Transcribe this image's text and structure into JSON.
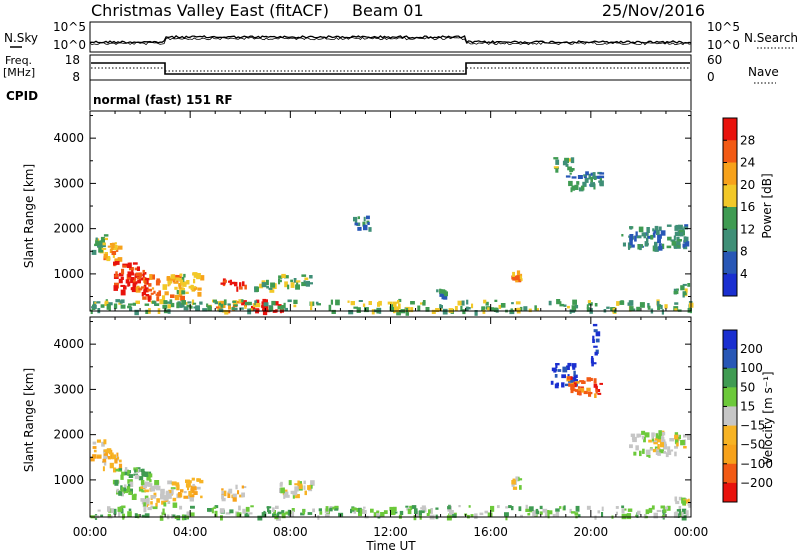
{
  "header": {
    "station": "Christmas Valley East (fitACF)",
    "beam": "Beam 01",
    "date": "25/Nov/2016"
  },
  "noise_panel": {
    "left_label": "N.Sky",
    "right_label": "N.Search",
    "tick_top": "10^5",
    "tick_bottom": "10^0"
  },
  "freq_panel": {
    "left_label_line1": "Freq.",
    "left_label_line2": "[MHz]",
    "left_ticks": [
      "18",
      "8"
    ],
    "right_label": "Nave",
    "right_ticks": [
      "60",
      "0"
    ]
  },
  "cpid_panel": {
    "label": "CPID",
    "mode": "normal (fast) 151 RF"
  },
  "colors": {
    "red": "#e8120c",
    "orange_red": "#f25a14",
    "orange": "#f7a21b",
    "yellow": "#f2b824",
    "green_light": "#6cc93a",
    "green": "#3f9b52",
    "teal": "#3f8f77",
    "blue": "#2857b6",
    "dark_blue": "#1a2fd0",
    "grey": "#c6c6c6"
  },
  "chart_data": [
    {
      "type": "heatmap",
      "quantity": "Power",
      "ylabel": "Slant Range [km]",
      "colorbar_label": "Power [dB]",
      "colorbar_ticks": [
        "28",
        "24",
        "20",
        "16",
        "12",
        "8",
        "4"
      ],
      "colorbar_colors": [
        "#e8120c",
        "#f25a14",
        "#f7a21b",
        "#f2c828",
        "#3f9b52",
        "#3f8f77",
        "#2857b6",
        "#1a2fd0"
      ],
      "ylim": [
        180,
        4600
      ],
      "yticks": [
        1000,
        2000,
        3000,
        4000
      ],
      "xlim_hours": [
        0,
        24
      ],
      "regions": [
        {
          "t": [
            0.0,
            0.6
          ],
          "r": [
            1500,
            1900
          ],
          "level": 3
        },
        {
          "t": [
            0.4,
            1.2
          ],
          "r": [
            1250,
            1700
          ],
          "level": 5
        },
        {
          "t": [
            0.9,
            2.2
          ],
          "r": [
            650,
            1300
          ],
          "level": 7
        },
        {
          "t": [
            1.8,
            2.7
          ],
          "r": [
            450,
            1000
          ],
          "level": 6
        },
        {
          "t": [
            2.7,
            3.6
          ],
          "r": [
            500,
            1000
          ],
          "level": 5
        },
        {
          "t": [
            3.2,
            4.4
          ],
          "r": [
            600,
            1050
          ],
          "level": 4
        },
        {
          "t": [
            5.2,
            6.2
          ],
          "r": [
            700,
            900
          ],
          "level": 7
        },
        {
          "t": [
            6.5,
            7.3
          ],
          "r": [
            650,
            900
          ],
          "level": 3
        },
        {
          "t": [
            7.5,
            8.8
          ],
          "r": [
            750,
            1000
          ],
          "level": 3
        },
        {
          "t": [
            6.0,
            7.8
          ],
          "r": [
            200,
            450
          ],
          "level": 8
        },
        {
          "t": [
            5.0,
            6.0
          ],
          "r": [
            200,
            420
          ],
          "level": 5
        },
        {
          "t": [
            10.5,
            11.2
          ],
          "r": [
            2000,
            2300
          ],
          "level": 2
        },
        {
          "t": [
            13.8,
            14.2
          ],
          "r": [
            500,
            750
          ],
          "level": 2
        },
        {
          "t": [
            16.8,
            17.2
          ],
          "r": [
            850,
            1100
          ],
          "level": 5
        },
        {
          "t": [
            18.5,
            19.2
          ],
          "r": [
            3300,
            3600
          ],
          "level": 3
        },
        {
          "t": [
            19.0,
            20.4
          ],
          "r": [
            2900,
            3300
          ],
          "level": 2
        },
        {
          "t": [
            21.2,
            23.8
          ],
          "r": [
            1600,
            2100
          ],
          "level": 2
        },
        {
          "t": [
            23.3,
            23.9
          ],
          "r": [
            500,
            800
          ],
          "level": 3
        },
        {
          "t": [
            0.0,
            24.0
          ],
          "r": [
            200,
            450
          ],
          "level": 3
        }
      ]
    },
    {
      "type": "heatmap",
      "quantity": "Velocity",
      "ylabel": "Slant Range [km]",
      "colorbar_label": "Velocity [m s⁻¹]",
      "colorbar_ticks": [
        "200",
        "100",
        "50",
        "15",
        "−15",
        "−50",
        "−100",
        "−200"
      ],
      "colorbar_colors": [
        "#1a2fd0",
        "#2857b6",
        "#3f9b52",
        "#6cc93a",
        "#c6c6c6",
        "#f7b324",
        "#f7a21b",
        "#f25a14",
        "#e8120c"
      ],
      "ylim": [
        180,
        4600
      ],
      "yticks": [
        1000,
        2000,
        3000,
        4000
      ],
      "xlim_hours": [
        0,
        24
      ],
      "xticks": [
        "00:00",
        "04:00",
        "08:00",
        "12:00",
        "16:00",
        "20:00",
        "00:00"
      ],
      "xlabel": "Time UT",
      "regions": [
        {
          "t": [
            0.0,
            0.6
          ],
          "r": [
            1500,
            1900
          ],
          "level": 3
        },
        {
          "t": [
            0.4,
            1.2
          ],
          "r": [
            1250,
            1700
          ],
          "level": 3
        },
        {
          "t": [
            0.9,
            2.4
          ],
          "r": [
            650,
            1300
          ],
          "level": 5
        },
        {
          "t": [
            2.0,
            3.4
          ],
          "r": [
            450,
            1000
          ],
          "level": 4
        },
        {
          "t": [
            3.4,
            4.4
          ],
          "r": [
            600,
            1050
          ],
          "level": 3
        },
        {
          "t": [
            5.2,
            6.2
          ],
          "r": [
            600,
            900
          ],
          "level": 3
        },
        {
          "t": [
            7.5,
            8.8
          ],
          "r": [
            650,
            1000
          ],
          "level": 4
        },
        {
          "t": [
            0.0,
            24.0
          ],
          "r": [
            200,
            450
          ],
          "level": 5
        },
        {
          "t": [
            16.8,
            17.2
          ],
          "r": [
            850,
            1100
          ],
          "level": 4
        },
        {
          "t": [
            18.4,
            19.4
          ],
          "r": [
            3100,
            3600
          ],
          "level": 8
        },
        {
          "t": [
            19.0,
            20.4
          ],
          "r": [
            2900,
            3300
          ],
          "level": 1
        },
        {
          "t": [
            20.0,
            20.2
          ],
          "r": [
            3500,
            4500
          ],
          "level": 8
        },
        {
          "t": [
            21.5,
            23.9
          ],
          "r": [
            1600,
            2100
          ],
          "level": 4
        },
        {
          "t": [
            23.3,
            23.9
          ],
          "r": [
            500,
            700
          ],
          "level": 4
        }
      ]
    }
  ]
}
